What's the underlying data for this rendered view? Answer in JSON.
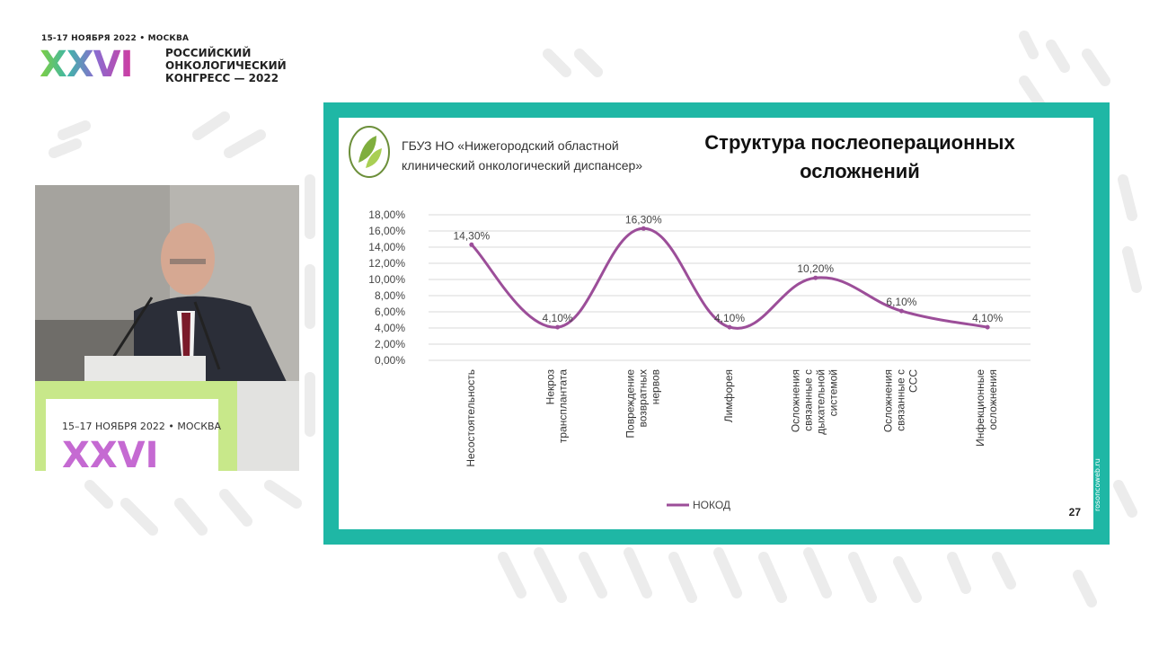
{
  "congress": {
    "dates": "15-17 НОЯБРЯ 2022 • МОСКВА",
    "roman": "XXVI",
    "name_line1": "РОССИЙСКИЙ",
    "name_line2": "ОНКОЛОГИЧЕСКИЙ",
    "name_line3": "КОНГРЕСС — 2022"
  },
  "podium": {
    "dates": "15–17 НОЯБРЯ 2022 • МОСКВА",
    "roman": "XXVI"
  },
  "slide": {
    "org_line1": "ГБУЗ НО «Нижегородский областной",
    "org_line2": "клинический онкологический диспансер»",
    "title_line1": "Структура послеоперационных",
    "title_line2": "осложнений",
    "page_number": "27",
    "side_text": "rosoncoweb.ru"
  },
  "colors": {
    "frame": "#1fb7a5",
    "line": "#9c4e99",
    "grid": "#d9d9d9"
  },
  "chart_data": {
    "type": "line",
    "categories": [
      "Несостоятельность",
      "Некроз трансплантата",
      "Повреждение возвратных нервов",
      "Лимфорея",
      "Осложнения связанные с дыхательной системой",
      "Осложнения связанные с ССС",
      "Инфекционные осложнения"
    ],
    "series": [
      {
        "name": "НОКОД",
        "values": [
          14.3,
          4.1,
          16.3,
          4.1,
          10.2,
          6.1,
          4.1
        ]
      }
    ],
    "data_labels": [
      "14,30%",
      "4,10%",
      "16,30%",
      "4,10%",
      "10,20%",
      "6,10%",
      "4,10%"
    ],
    "y_ticks": [
      "0,00%",
      "2,00%",
      "4,00%",
      "6,00%",
      "8,00%",
      "10,00%",
      "12,00%",
      "14,00%",
      "16,00%",
      "18,00%"
    ],
    "ylim": [
      0,
      18
    ],
    "grid": true,
    "legend": "bottom",
    "smooth": true
  }
}
